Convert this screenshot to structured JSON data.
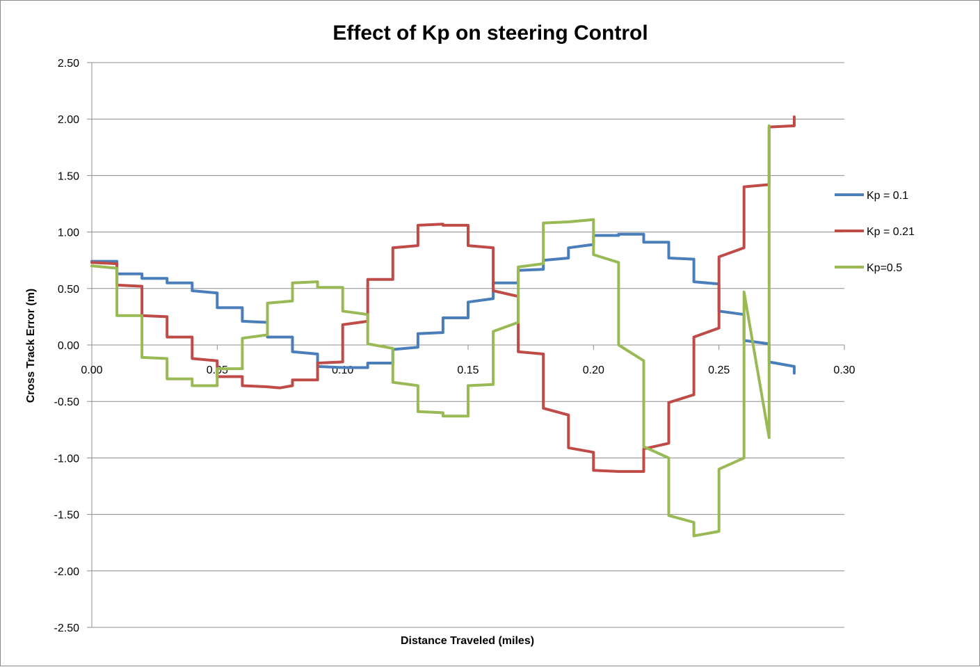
{
  "chart_data": {
    "type": "line",
    "title": "Effect of Kp on steering Control",
    "xlabel": "Distance Traveled (miles)",
    "ylabel": "Cross Track Error (m)",
    "xlim": [
      0,
      0.3
    ],
    "ylim": [
      -2.5,
      2.5
    ],
    "x_ticks": [
      "0.00",
      "0.05",
      "0.10",
      "0.15",
      "0.20",
      "0.25",
      "0.30"
    ],
    "y_ticks": [
      "2.50",
      "2.00",
      "1.50",
      "1.00",
      "0.50",
      "0.00",
      "-0.50",
      "-1.00",
      "-1.50",
      "-2.00",
      "-2.50"
    ],
    "grid": "horizontal",
    "legend_position": "right",
    "series": [
      {
        "name": "Kp = 0.1",
        "color": "#4a7ebb",
        "points": [
          [
            0.0,
            0.74
          ],
          [
            0.01,
            0.74
          ],
          [
            0.01,
            0.63
          ],
          [
            0.02,
            0.63
          ],
          [
            0.02,
            0.59
          ],
          [
            0.03,
            0.59
          ],
          [
            0.03,
            0.55
          ],
          [
            0.04,
            0.55
          ],
          [
            0.04,
            0.48
          ],
          [
            0.05,
            0.46
          ],
          [
            0.05,
            0.33
          ],
          [
            0.06,
            0.33
          ],
          [
            0.06,
            0.21
          ],
          [
            0.07,
            0.2
          ],
          [
            0.07,
            0.07
          ],
          [
            0.08,
            0.07
          ],
          [
            0.08,
            -0.06
          ],
          [
            0.09,
            -0.08
          ],
          [
            0.09,
            -0.19
          ],
          [
            0.1,
            -0.2
          ],
          [
            0.11,
            -0.2
          ],
          [
            0.11,
            -0.16
          ],
          [
            0.12,
            -0.16
          ],
          [
            0.12,
            -0.04
          ],
          [
            0.13,
            -0.02
          ],
          [
            0.13,
            0.1
          ],
          [
            0.14,
            0.11
          ],
          [
            0.14,
            0.24
          ],
          [
            0.15,
            0.24
          ],
          [
            0.15,
            0.38
          ],
          [
            0.16,
            0.41
          ],
          [
            0.16,
            0.55
          ],
          [
            0.17,
            0.55
          ],
          [
            0.17,
            0.66
          ],
          [
            0.18,
            0.67
          ],
          [
            0.18,
            0.75
          ],
          [
            0.19,
            0.77
          ],
          [
            0.19,
            0.86
          ],
          [
            0.2,
            0.89
          ],
          [
            0.2,
            0.97
          ],
          [
            0.21,
            0.97
          ],
          [
            0.21,
            0.98
          ],
          [
            0.22,
            0.98
          ],
          [
            0.22,
            0.91
          ],
          [
            0.23,
            0.91
          ],
          [
            0.23,
            0.77
          ],
          [
            0.24,
            0.76
          ],
          [
            0.24,
            0.56
          ],
          [
            0.25,
            0.54
          ],
          [
            0.25,
            0.3
          ],
          [
            0.26,
            0.27
          ],
          [
            0.26,
            0.04
          ],
          [
            0.27,
            0.01
          ],
          [
            0.27,
            -0.15
          ],
          [
            0.28,
            -0.19
          ],
          [
            0.28,
            -0.25
          ]
        ]
      },
      {
        "name": "Kp = 0.21",
        "color": "#be4b48",
        "points": [
          [
            0.0,
            0.73
          ],
          [
            0.01,
            0.72
          ],
          [
            0.01,
            0.53
          ],
          [
            0.02,
            0.52
          ],
          [
            0.02,
            0.26
          ],
          [
            0.03,
            0.25
          ],
          [
            0.03,
            0.07
          ],
          [
            0.04,
            0.07
          ],
          [
            0.04,
            -0.12
          ],
          [
            0.05,
            -0.14
          ],
          [
            0.05,
            -0.28
          ],
          [
            0.06,
            -0.28
          ],
          [
            0.06,
            -0.36
          ],
          [
            0.07,
            -0.37
          ],
          [
            0.075,
            -0.38
          ],
          [
            0.08,
            -0.36
          ],
          [
            0.08,
            -0.31
          ],
          [
            0.09,
            -0.31
          ],
          [
            0.09,
            -0.16
          ],
          [
            0.1,
            -0.15
          ],
          [
            0.1,
            0.18
          ],
          [
            0.11,
            0.21
          ],
          [
            0.11,
            0.58
          ],
          [
            0.12,
            0.58
          ],
          [
            0.12,
            0.86
          ],
          [
            0.13,
            0.88
          ],
          [
            0.13,
            1.06
          ],
          [
            0.14,
            1.07
          ],
          [
            0.14,
            1.06
          ],
          [
            0.15,
            1.06
          ],
          [
            0.15,
            0.88
          ],
          [
            0.16,
            0.86
          ],
          [
            0.16,
            0.48
          ],
          [
            0.17,
            0.43
          ],
          [
            0.17,
            -0.06
          ],
          [
            0.18,
            -0.08
          ],
          [
            0.18,
            -0.56
          ],
          [
            0.19,
            -0.62
          ],
          [
            0.19,
            -0.91
          ],
          [
            0.2,
            -0.95
          ],
          [
            0.2,
            -1.11
          ],
          [
            0.21,
            -1.12
          ],
          [
            0.22,
            -1.12
          ],
          [
            0.22,
            -0.92
          ],
          [
            0.23,
            -0.87
          ],
          [
            0.23,
            -0.51
          ],
          [
            0.24,
            -0.44
          ],
          [
            0.24,
            0.07
          ],
          [
            0.25,
            0.15
          ],
          [
            0.25,
            0.78
          ],
          [
            0.26,
            0.86
          ],
          [
            0.26,
            1.4
          ],
          [
            0.27,
            1.42
          ],
          [
            0.27,
            1.93
          ],
          [
            0.28,
            1.94
          ],
          [
            0.28,
            2.02
          ]
        ]
      },
      {
        "name": "Kp=0.5",
        "color": "#98b954",
        "points": [
          [
            0.0,
            0.7
          ],
          [
            0.01,
            0.68
          ],
          [
            0.01,
            0.26
          ],
          [
            0.02,
            0.26
          ],
          [
            0.02,
            -0.11
          ],
          [
            0.03,
            -0.12
          ],
          [
            0.03,
            -0.3
          ],
          [
            0.04,
            -0.3
          ],
          [
            0.04,
            -0.36
          ],
          [
            0.05,
            -0.36
          ],
          [
            0.05,
            -0.21
          ],
          [
            0.06,
            -0.21
          ],
          [
            0.06,
            0.06
          ],
          [
            0.07,
            0.09
          ],
          [
            0.07,
            0.37
          ],
          [
            0.08,
            0.39
          ],
          [
            0.08,
            0.55
          ],
          [
            0.09,
            0.56
          ],
          [
            0.09,
            0.51
          ],
          [
            0.1,
            0.51
          ],
          [
            0.1,
            0.3
          ],
          [
            0.11,
            0.27
          ],
          [
            0.11,
            0.01
          ],
          [
            0.12,
            -0.03
          ],
          [
            0.12,
            -0.33
          ],
          [
            0.13,
            -0.36
          ],
          [
            0.13,
            -0.59
          ],
          [
            0.14,
            -0.6
          ],
          [
            0.14,
            -0.63
          ],
          [
            0.15,
            -0.63
          ],
          [
            0.15,
            -0.36
          ],
          [
            0.16,
            -0.35
          ],
          [
            0.16,
            0.12
          ],
          [
            0.17,
            0.2
          ],
          [
            0.17,
            0.69
          ],
          [
            0.18,
            0.72
          ],
          [
            0.18,
            1.08
          ],
          [
            0.19,
            1.09
          ],
          [
            0.2,
            1.11
          ],
          [
            0.2,
            0.8
          ],
          [
            0.21,
            0.73
          ],
          [
            0.21,
            0.0
          ],
          [
            0.22,
            -0.14
          ],
          [
            0.22,
            -0.9
          ],
          [
            0.23,
            -1.0
          ],
          [
            0.23,
            -1.51
          ],
          [
            0.24,
            -1.57
          ],
          [
            0.24,
            -1.69
          ],
          [
            0.25,
            -1.65
          ],
          [
            0.25,
            -1.1
          ],
          [
            0.26,
            -1.0
          ],
          [
            0.26,
            0.47
          ],
          [
            0.27,
            -0.82
          ],
          [
            0.27,
            1.94
          ]
        ]
      }
    ]
  }
}
